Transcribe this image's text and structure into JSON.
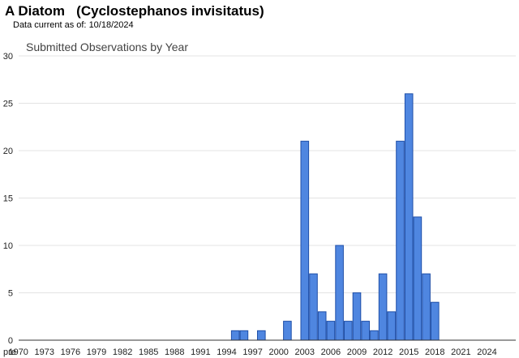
{
  "header": {
    "common_name": "A Diatom",
    "scientific_name": "(Cyclostephanos invisitatus)",
    "data_current_label": "Data current as of:",
    "data_current_date": "10/18/2024"
  },
  "chart_data": {
    "type": "bar",
    "title": "Submitted Observations by Year",
    "xlabel": "",
    "ylabel": "",
    "ylim": [
      0,
      30
    ],
    "y_ticks": [
      0,
      5,
      10,
      15,
      20,
      25,
      30
    ],
    "grid": true,
    "bar_color": "#4f86e0",
    "bar_edge_color": "#1f4fa8",
    "gridline_color": "#e3e3e3",
    "categories": [
      "pre",
      "1970",
      "1971",
      "1972",
      "1973",
      "1974",
      "1975",
      "1976",
      "1977",
      "1978",
      "1979",
      "1980",
      "1981",
      "1982",
      "1983",
      "1984",
      "1985",
      "1986",
      "1987",
      "1988",
      "1989",
      "1990",
      "1991",
      "1992",
      "1993",
      "1994",
      "1995",
      "1996",
      "1997",
      "1998",
      "1999",
      "2000",
      "2001",
      "2002",
      "2003",
      "2004",
      "2005",
      "2006",
      "2007",
      "2008",
      "2009",
      "2010",
      "2011",
      "2012",
      "2013",
      "2014",
      "2015",
      "2016",
      "2017",
      "2018",
      "2019",
      "2020",
      "2021",
      "2022",
      "2023",
      "2024"
    ],
    "x_tick_labels": [
      "pre",
      "1970",
      "1973",
      "1976",
      "1979",
      "1982",
      "1985",
      "1988",
      "1991",
      "1994",
      "1997",
      "2000",
      "2003",
      "2006",
      "2009",
      "2012",
      "2015",
      "2018",
      "2021",
      "2024"
    ],
    "values": [
      0,
      0,
      0,
      0,
      0,
      0,
      0,
      0,
      0,
      0,
      0,
      0,
      0,
      0,
      0,
      0,
      0,
      0,
      0,
      0,
      0,
      0,
      0,
      0,
      0,
      0,
      1,
      1,
      0,
      1,
      0,
      0,
      2,
      0,
      21,
      7,
      3,
      2,
      10,
      2,
      5,
      2,
      1,
      7,
      3,
      21,
      26,
      13,
      7,
      4,
      0,
      0,
      0,
      0,
      0,
      0
    ]
  }
}
